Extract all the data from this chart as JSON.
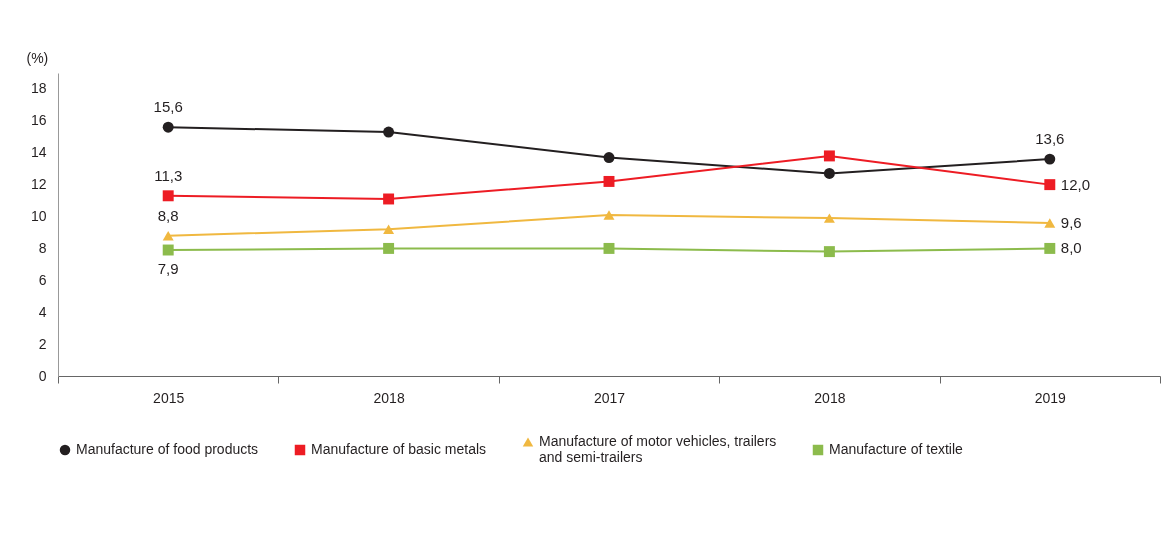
{
  "chart_data": {
    "type": "line",
    "categories": [
      "2015",
      "2018",
      "2017",
      "2018",
      "2019"
    ],
    "ylabel": "(%)",
    "ylim": [
      0,
      19
    ],
    "yticks": [
      0,
      2,
      4,
      6,
      8,
      10,
      12,
      14,
      16,
      18
    ],
    "legend": "bottom",
    "line_style": "solid",
    "series": [
      {
        "name": "Manufacture of food products",
        "color": "#231f20",
        "marker": "circle",
        "values": [
          15.6,
          15.3,
          13.7,
          12.7,
          13.6
        ],
        "value_labels": [
          "15,6",
          null,
          null,
          null,
          "13,6"
        ]
      },
      {
        "name": "Manufacture of basic metals",
        "color": "#ed1c24",
        "marker": "square",
        "values": [
          11.3,
          11.1,
          12.2,
          13.8,
          12.0
        ],
        "value_labels": [
          "11,3",
          null,
          null,
          null,
          "12,0"
        ]
      },
      {
        "name": "Manufacture of motor vehicles, trailers and semi-trailers",
        "color": "#f0b840",
        "marker": "triangle",
        "values": [
          8.8,
          9.2,
          10.1,
          9.9,
          9.6
        ],
        "value_labels": [
          "8,8",
          null,
          null,
          null,
          "9,6"
        ]
      },
      {
        "name": "Manufacture of textile",
        "color": "#8cbb4c",
        "marker": "square",
        "values": [
          7.9,
          8.0,
          8.0,
          7.8,
          8.0
        ],
        "value_labels": [
          "7,9",
          null,
          null,
          null,
          "8,0"
        ]
      }
    ]
  }
}
